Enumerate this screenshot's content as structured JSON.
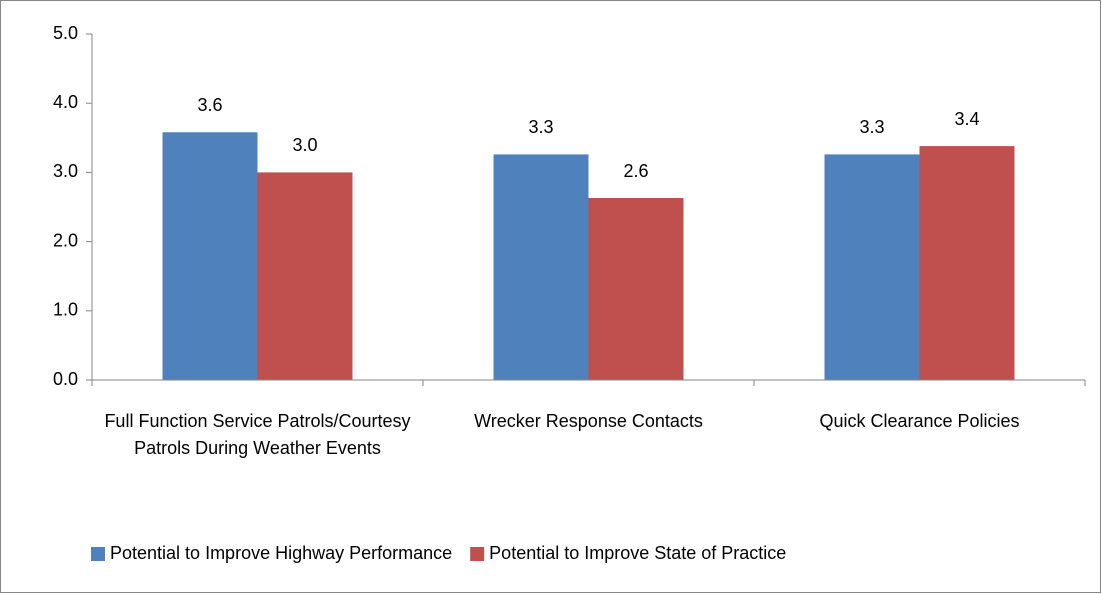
{
  "chart_data": {
    "type": "bar",
    "categories": [
      "Full Function Service Patrols/Courtesy Patrols During Weather Events",
      "Wrecker Response Contacts",
      "Quick Clearance Policies"
    ],
    "series": [
      {
        "name": "Potential to Improve Highway Performance",
        "color": "#4f81bd",
        "values": [
          3.58,
          3.26,
          3.26
        ],
        "value_labels": [
          "3.6",
          "3.3",
          "3.3"
        ]
      },
      {
        "name": "Potential to Improve State of Practice",
        "color": "#c0504d",
        "values": [
          3.0,
          2.63,
          3.38
        ],
        "value_labels": [
          "3.0",
          "2.6",
          "3.4"
        ]
      }
    ],
    "ylim": [
      0,
      5
    ],
    "yticks": [
      {
        "value": 0,
        "label": "0.0"
      },
      {
        "value": 1,
        "label": "1.0"
      },
      {
        "value": 2,
        "label": "2.0"
      },
      {
        "value": 3,
        "label": "3.0"
      },
      {
        "value": 4,
        "label": "4.0"
      },
      {
        "value": 5,
        "label": "5.0"
      }
    ],
    "grid": false,
    "legend": "bottom"
  }
}
